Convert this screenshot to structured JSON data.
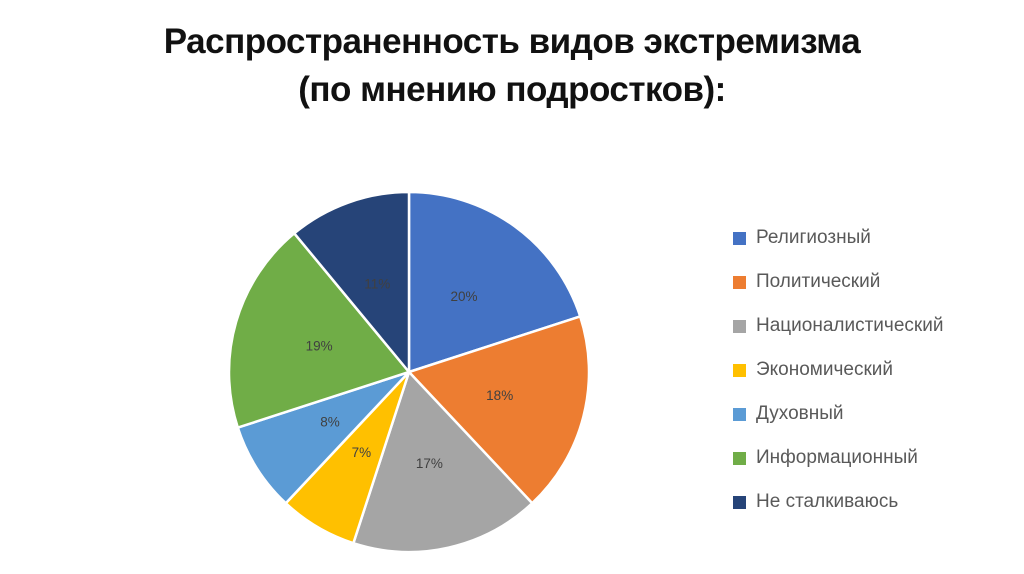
{
  "title": {
    "line1": "Распространенность видов экстремизма",
    "line2": "(по мнению подростков):"
  },
  "chart_data": {
    "type": "pie",
    "title": "Распространенность видов экстремизма (по мнению подростков):",
    "categories": [
      "Религиозный",
      "Политический",
      "Националистический",
      "Экономический",
      "Духовный",
      "Информационный",
      "Не сталкиваюсь"
    ],
    "values": [
      20,
      18,
      17,
      7,
      8,
      19,
      11
    ],
    "slice_labels": [
      "20%",
      "18%",
      "17%",
      "7%",
      "8%",
      "19%",
      "11%"
    ],
    "unit": "%",
    "colors": [
      "#4472c4",
      "#ed7d31",
      "#a5a5a5",
      "#ffc000",
      "#5b9bd5",
      "#70ad47",
      "#264478"
    ],
    "start_angle_deg": 0,
    "direction": "clockwise",
    "slice_border_color": "#ffffff",
    "label_color": "#404040",
    "legend_position": "right",
    "legend_text_color": "#595959",
    "background": "#ffffff"
  }
}
